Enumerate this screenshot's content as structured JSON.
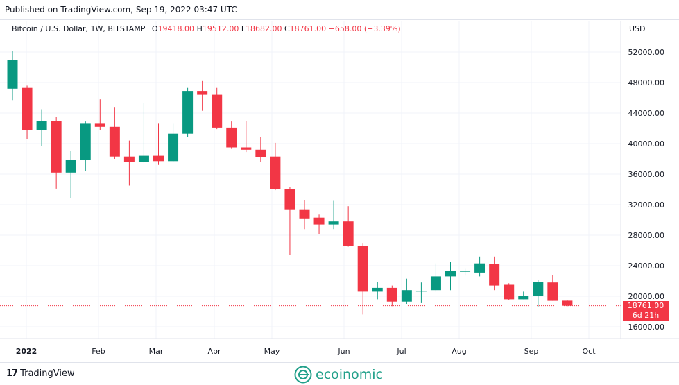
{
  "header": {
    "published": "Published on TradingView.com, Sep 19, 2022 03:47 UTC"
  },
  "legend": {
    "symbol": "Bitcoin / U.S. Dollar, 1W, BITSTAMP",
    "o_label": "O",
    "o_value": "19418.00",
    "h_label": "H",
    "h_value": "19512.00",
    "l_label": "L",
    "l_value": "18682.00",
    "c_label": "C",
    "c_value": "18761.00",
    "change": "−658.00 (−3.39%)"
  },
  "price_tag": {
    "price": "18761.00",
    "countdown": "6d 21h"
  },
  "footer": {
    "tradingview": "TradingView",
    "ecoinomic": "ecoinomic"
  },
  "colors": {
    "up": "#089981",
    "down": "#f23645",
    "grid": "#f0f3fa",
    "axis_text": "#131722",
    "brand": "#21a08a"
  },
  "chart_data": {
    "type": "candlestick",
    "title": "Bitcoin / U.S. Dollar, 1W, BITSTAMP",
    "currency": "USD",
    "ylim": [
      14000,
      54000
    ],
    "y_ticks": [
      "16000.00",
      "20000.00",
      "24000.00",
      "28000.00",
      "32000.00",
      "36000.00",
      "40000.00",
      "44000.00",
      "48000.00",
      "52000.00"
    ],
    "x_ticks": [
      "2022",
      "Feb",
      "Mar",
      "Apr",
      "May",
      "Jun",
      "Jul",
      "Aug",
      "Sep",
      "Oct"
    ],
    "grid": true,
    "last_price": 18761,
    "candles": [
      {
        "o": 47200,
        "h": 52100,
        "l": 45700,
        "c": 51000
      },
      {
        "o": 47300,
        "h": 47600,
        "l": 40600,
        "c": 41800
      },
      {
        "o": 41800,
        "h": 44500,
        "l": 39700,
        "c": 43000
      },
      {
        "o": 43000,
        "h": 43500,
        "l": 34100,
        "c": 36200
      },
      {
        "o": 36200,
        "h": 39000,
        "l": 32900,
        "c": 37900
      },
      {
        "o": 37900,
        "h": 42900,
        "l": 36400,
        "c": 42600
      },
      {
        "o": 42600,
        "h": 45800,
        "l": 41800,
        "c": 42200
      },
      {
        "o": 42200,
        "h": 44800,
        "l": 38000,
        "c": 38300
      },
      {
        "o": 38300,
        "h": 40400,
        "l": 34500,
        "c": 37600
      },
      {
        "o": 37600,
        "h": 45300,
        "l": 37500,
        "c": 38400
      },
      {
        "o": 38400,
        "h": 42600,
        "l": 37200,
        "c": 37700
      },
      {
        "o": 37700,
        "h": 42600,
        "l": 37600,
        "c": 41300
      },
      {
        "o": 41300,
        "h": 47300,
        "l": 40900,
        "c": 46900
      },
      {
        "o": 46900,
        "h": 48200,
        "l": 44300,
        "c": 46400
      },
      {
        "o": 46400,
        "h": 47300,
        "l": 41900,
        "c": 42100
      },
      {
        "o": 42100,
        "h": 42900,
        "l": 39300,
        "c": 39500
      },
      {
        "o": 39500,
        "h": 43000,
        "l": 38900,
        "c": 39200
      },
      {
        "o": 39200,
        "h": 40900,
        "l": 37600,
        "c": 38200
      },
      {
        "o": 38300,
        "h": 40100,
        "l": 33900,
        "c": 34000
      },
      {
        "o": 34000,
        "h": 34300,
        "l": 25400,
        "c": 31300
      },
      {
        "o": 31300,
        "h": 32600,
        "l": 28800,
        "c": 30200
      },
      {
        "o": 30300,
        "h": 30700,
        "l": 28100,
        "c": 29400
      },
      {
        "o": 29400,
        "h": 32500,
        "l": 28800,
        "c": 29800
      },
      {
        "o": 29800,
        "h": 31800,
        "l": 26500,
        "c": 26600
      },
      {
        "o": 26600,
        "h": 26900,
        "l": 17600,
        "c": 20600
      },
      {
        "o": 20600,
        "h": 21900,
        "l": 19600,
        "c": 21100
      },
      {
        "o": 21100,
        "h": 21400,
        "l": 18700,
        "c": 19300
      },
      {
        "o": 19300,
        "h": 22300,
        "l": 19000,
        "c": 20800
      },
      {
        "o": 20700,
        "h": 21800,
        "l": 19100,
        "c": 20700
      },
      {
        "o": 20800,
        "h": 24300,
        "l": 20600,
        "c": 22600
      },
      {
        "o": 22600,
        "h": 24500,
        "l": 20800,
        "c": 23300
      },
      {
        "o": 23300,
        "h": 23600,
        "l": 22700,
        "c": 23300
      },
      {
        "o": 23100,
        "h": 25200,
        "l": 22600,
        "c": 24300
      },
      {
        "o": 24200,
        "h": 25200,
        "l": 20800,
        "c": 21400
      },
      {
        "o": 21500,
        "h": 21700,
        "l": 19500,
        "c": 19600
      },
      {
        "o": 19600,
        "h": 20600,
        "l": 19600,
        "c": 20000
      },
      {
        "o": 20000,
        "h": 22100,
        "l": 18600,
        "c": 21900
      },
      {
        "o": 21800,
        "h": 22800,
        "l": 19400,
        "c": 19400
      },
      {
        "o": 19418,
        "h": 19512,
        "l": 18682,
        "c": 18761
      }
    ]
  }
}
